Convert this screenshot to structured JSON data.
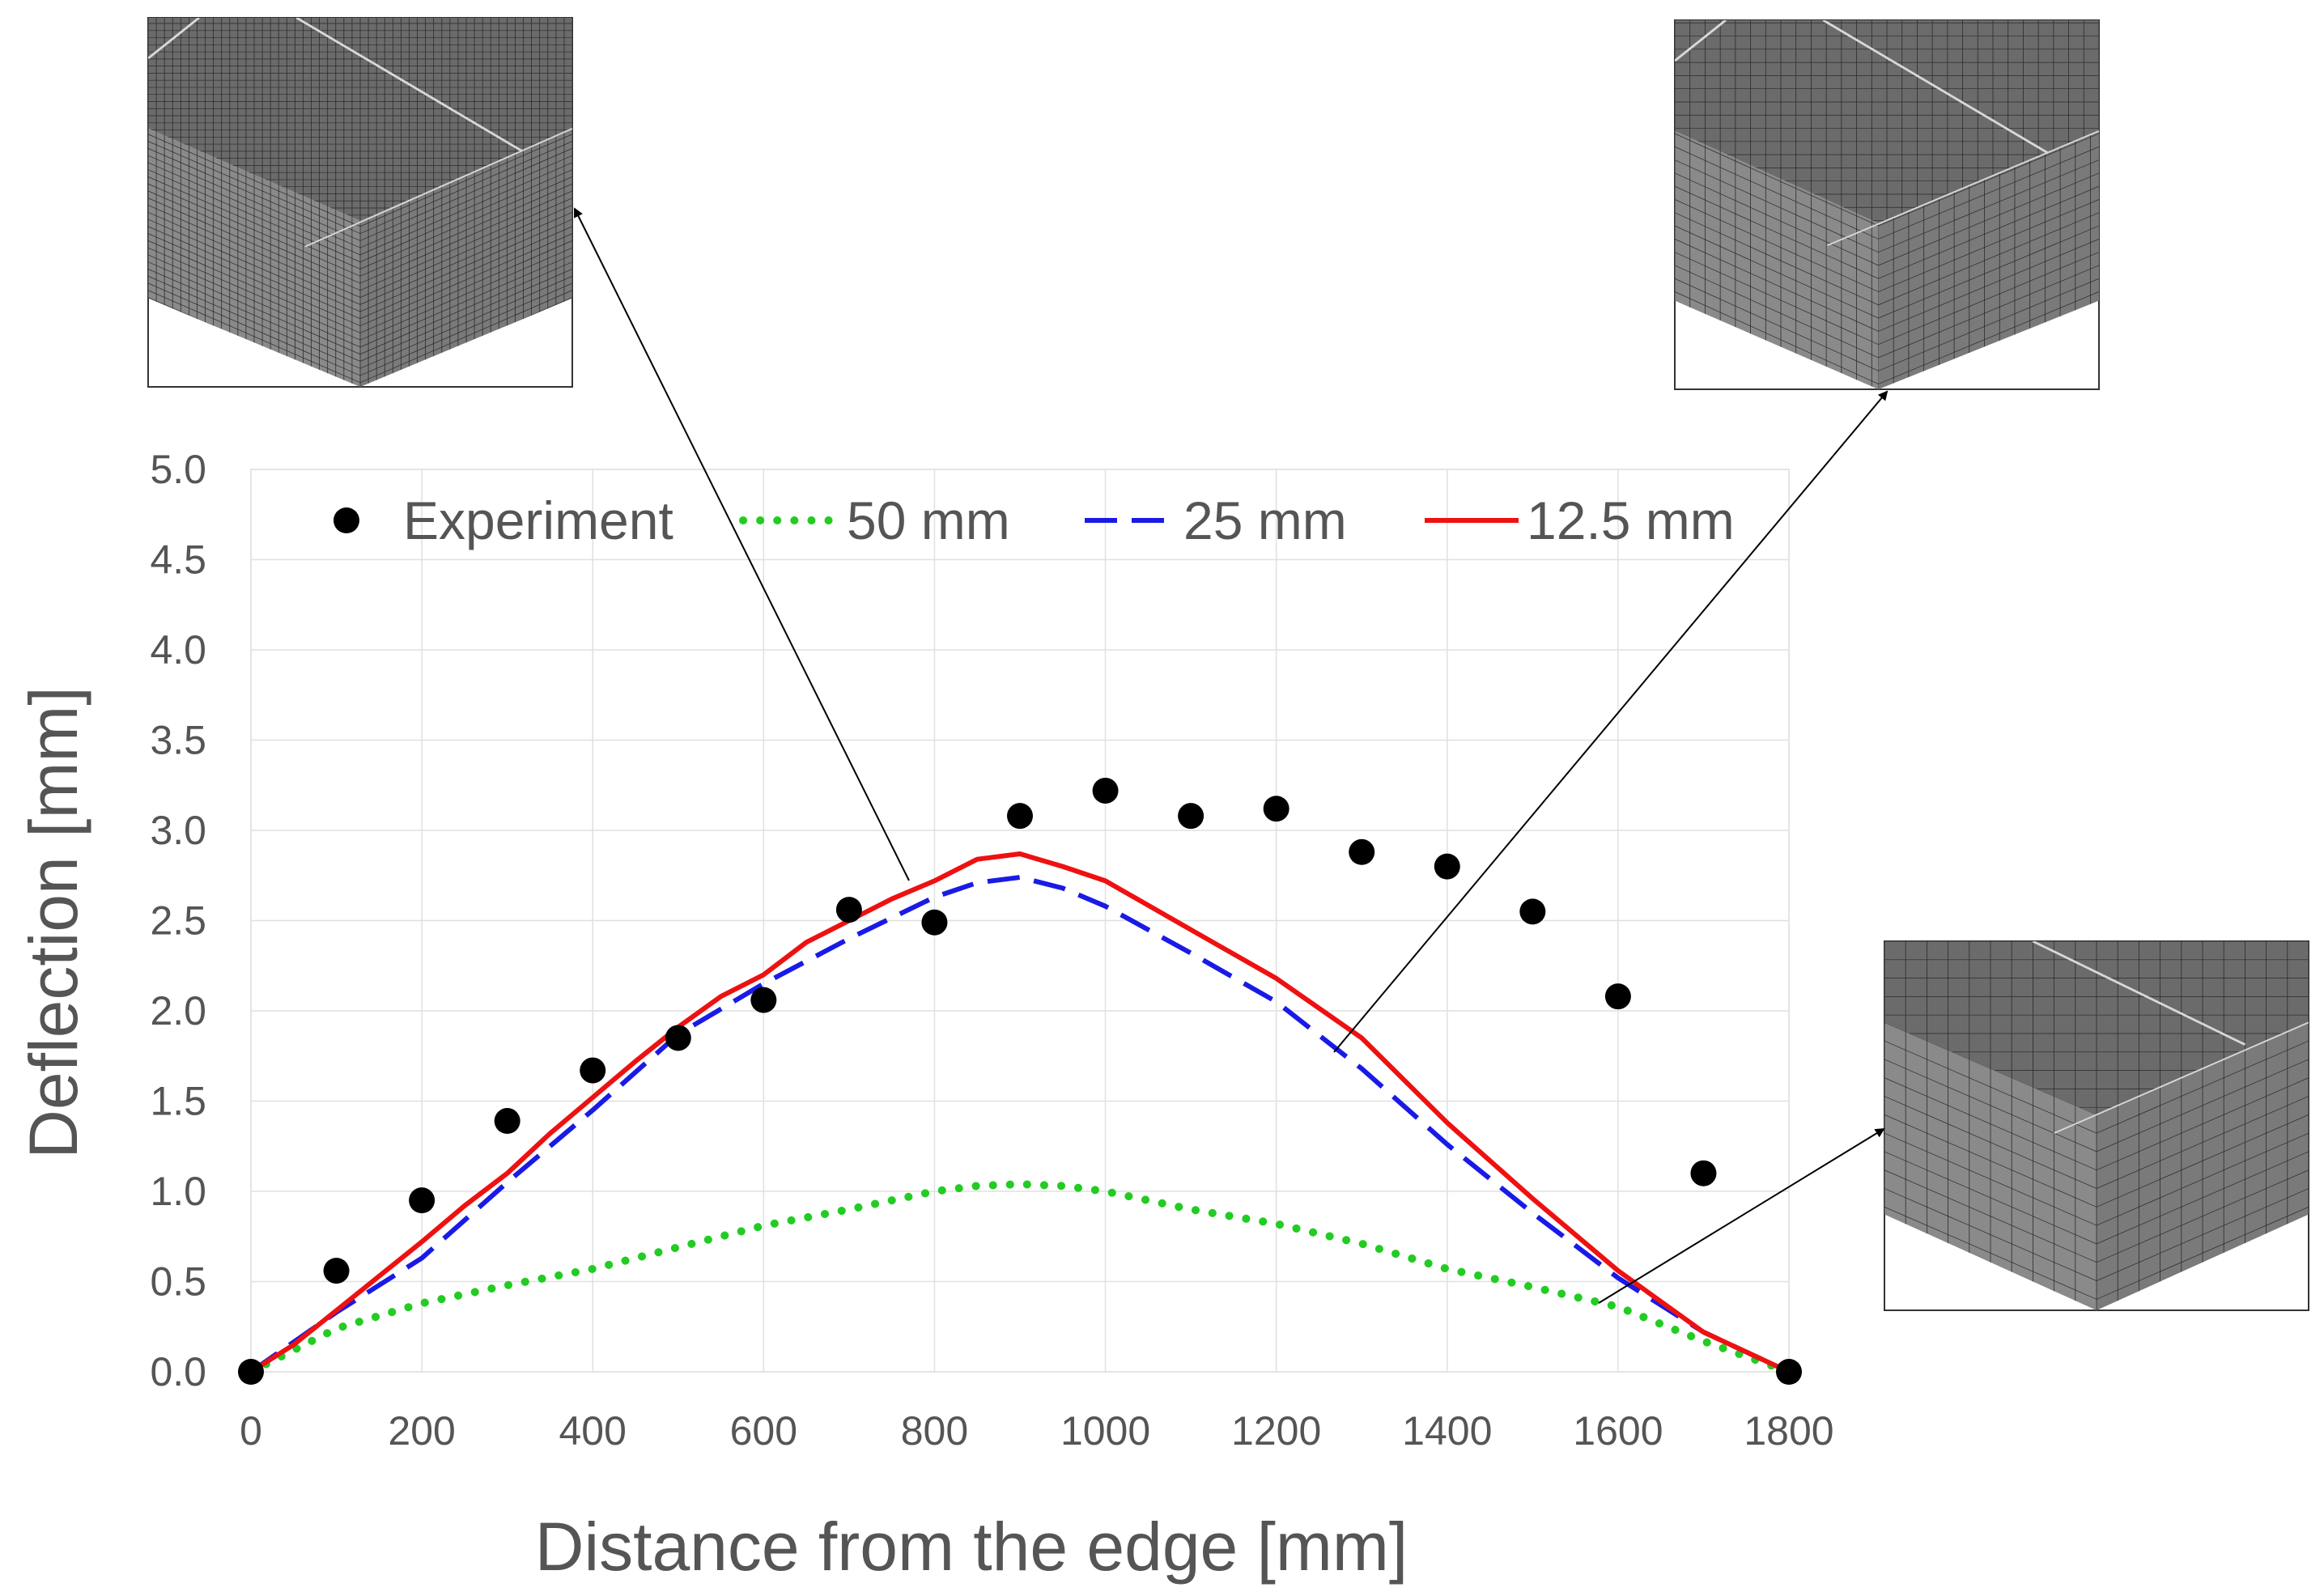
{
  "chart_data": {
    "type": "line",
    "xlabel": "Distance from the edge [mm]",
    "ylabel": "Deflection [mm]",
    "xlim": [
      0,
      1800
    ],
    "ylim": [
      0,
      5
    ],
    "x_ticks": [
      "0",
      "200",
      "400",
      "600",
      "800",
      "1000",
      "1200",
      "1400",
      "1600",
      "1800"
    ],
    "y_ticks": [
      "0.0",
      "0.5",
      "1.0",
      "1.5",
      "2.0",
      "2.5",
      "3.0",
      "3.5",
      "4.0",
      "4.5",
      "5.0"
    ],
    "grid": true,
    "legend_position": "top",
    "series": [
      {
        "name": "Experiment",
        "style": "markers",
        "color": "#000000",
        "x": [
          0,
          100,
          200,
          300,
          400,
          500,
          600,
          700,
          800,
          900,
          1000,
          1100,
          1200,
          1300,
          1400,
          1500,
          1600,
          1700,
          1800
        ],
        "y": [
          0.0,
          0.56,
          0.95,
          1.39,
          1.67,
          1.85,
          2.06,
          2.56,
          2.49,
          3.08,
          3.22,
          3.08,
          3.12,
          2.88,
          2.8,
          2.55,
          2.08,
          1.1,
          0.0
        ]
      },
      {
        "name": "50 mm",
        "style": "dotted",
        "color": "#22CC22",
        "x": [
          0,
          100,
          200,
          300,
          400,
          500,
          600,
          700,
          800,
          850,
          900,
          950,
          1000,
          1100,
          1200,
          1300,
          1400,
          1500,
          1600,
          1700,
          1800
        ],
        "y": [
          0.0,
          0.24,
          0.38,
          0.48,
          0.57,
          0.69,
          0.81,
          0.9,
          1.0,
          1.03,
          1.04,
          1.03,
          1.0,
          0.9,
          0.82,
          0.71,
          0.57,
          0.47,
          0.36,
          0.17,
          0.0
        ]
      },
      {
        "name": "25 mm",
        "style": "dashed",
        "color": "#1A1AE6",
        "x": [
          0,
          100,
          200,
          300,
          400,
          500,
          600,
          700,
          800,
          850,
          900,
          950,
          1000,
          1100,
          1200,
          1300,
          1400,
          1500,
          1600,
          1700,
          1800
        ],
        "y": [
          0.0,
          0.33,
          0.63,
          1.05,
          1.45,
          1.87,
          2.15,
          2.4,
          2.63,
          2.71,
          2.74,
          2.68,
          2.58,
          2.32,
          2.05,
          1.68,
          1.26,
          0.88,
          0.52,
          0.22,
          0.0
        ]
      },
      {
        "name": "12.5 mm",
        "style": "solid",
        "color": "#EE1111",
        "x": [
          0,
          50,
          100,
          150,
          200,
          250,
          300,
          350,
          400,
          450,
          500,
          550,
          600,
          650,
          700,
          750,
          800,
          850,
          900,
          950,
          1000,
          1100,
          1200,
          1300,
          1400,
          1500,
          1600,
          1700,
          1800
        ],
        "y": [
          0.0,
          0.15,
          0.34,
          0.53,
          0.72,
          0.92,
          1.1,
          1.32,
          1.52,
          1.72,
          1.91,
          2.08,
          2.2,
          2.38,
          2.5,
          2.62,
          2.72,
          2.84,
          2.87,
          2.8,
          2.72,
          2.45,
          2.18,
          1.85,
          1.38,
          0.96,
          0.56,
          0.22,
          0.0
        ]
      }
    ]
  },
  "insets": [
    {
      "name": "mesh-50mm",
      "grid_cells": 26
    },
    {
      "name": "mesh-25mm",
      "grid_cells": 14
    },
    {
      "name": "mesh-12.5mm",
      "grid_cells": 10
    }
  ]
}
